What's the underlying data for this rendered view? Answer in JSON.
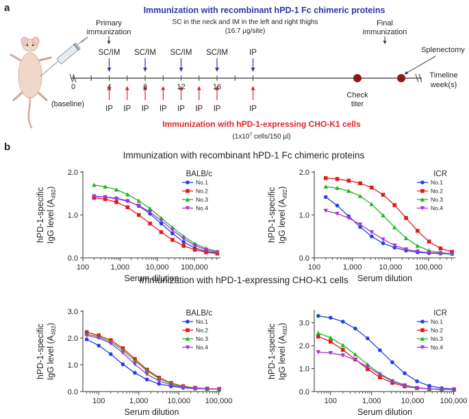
{
  "colors": {
    "blue": "#2b36a6",
    "red": "#e0242a",
    "dot": "#8b1a1a",
    "text": "#222222",
    "series": [
      "#1f3fe0",
      "#e01a1a",
      "#1fb31f",
      "#a933d6"
    ]
  },
  "panel_a": {
    "letter": "a",
    "title_blue": "Immunization with recombinant hPD-1 Fc chimeric proteins",
    "title_red": "Immunization with hPD-1-expressing CHO-K1 cells",
    "red_sub": "(1x10",
    "red_sub_exp": "7",
    "red_sub_rest": " cells/150 µl)",
    "primary_label_1": "Primary",
    "primary_label_2": "immunization",
    "sc_note_1": "SC in the neck and IM in the left and right thighs",
    "sc_note_2": "(16.7 µg/site)",
    "final_label_1": "Final",
    "final_label_2": "immunization",
    "splenectomy": "Splenectomy",
    "timeline_1": "Timeline",
    "timeline_2": "week(s)",
    "check_1": "Check",
    "check_2": "titer",
    "baseline": "(baseline)",
    "week_labels": [
      "0",
      "4",
      "8",
      "12",
      "16"
    ],
    "blue_marks": [
      "SC/IM",
      "SC/IM",
      "SC/IM",
      "SC/IM",
      "IP"
    ],
    "red_marks": [
      "IP",
      "IP",
      "IP",
      "IP",
      "IP",
      "IP",
      "IP",
      "IP"
    ]
  },
  "panel_b": {
    "letter": "b",
    "row1_title": "Immunization with recombinant hPD-1 Fc chimeric proteins",
    "row2_title": "Immunization with hPD-1-expressing CHO-K1 cells"
  },
  "chart_data": [
    {
      "type": "line",
      "title": "BALB/c",
      "row": "Immunization with recombinant hPD-1 Fc chimeric proteins",
      "xlabel": "Serum dilution",
      "ylabel_1": "hPD-1-specific",
      "ylabel_2": "IgG level (A",
      "ylabel_sub": "492",
      "ylabel_end": ")",
      "xscale": "log",
      "xlim": [
        100,
        500000
      ],
      "xticks": [
        100,
        1000,
        10000,
        100000
      ],
      "xtick_labels": [
        "100",
        "1,000",
        "10,000",
        "100,000"
      ],
      "ylim": [
        0,
        2.0
      ],
      "yticks": [
        0,
        1.0,
        2.0
      ],
      "ytick_labels": [
        "0.0",
        "1.0",
        "2.0"
      ],
      "x": [
        200,
        400,
        800,
        1600,
        3200,
        6400,
        12800,
        25600,
        51200,
        102400,
        204800,
        409600
      ],
      "series": [
        {
          "name": "No.1",
          "marker": "circle",
          "values": [
            1.43,
            1.42,
            1.39,
            1.33,
            1.21,
            1.03,
            0.8,
            0.57,
            0.37,
            0.23,
            0.15,
            0.11
          ]
        },
        {
          "name": "No.2",
          "marker": "square",
          "values": [
            1.4,
            1.37,
            1.3,
            1.18,
            1.0,
            0.8,
            0.6,
            0.42,
            0.28,
            0.19,
            0.13,
            0.1
          ]
        },
        {
          "name": "No.3",
          "marker": "triangle",
          "values": [
            1.7,
            1.66,
            1.59,
            1.48,
            1.33,
            1.15,
            0.93,
            0.71,
            0.5,
            0.33,
            0.22,
            0.15
          ]
        },
        {
          "name": "No.4",
          "marker": "triangle-down",
          "values": [
            1.44,
            1.42,
            1.38,
            1.32,
            1.22,
            1.07,
            0.87,
            0.65,
            0.45,
            0.29,
            0.19,
            0.13
          ]
        }
      ],
      "legend": "top-right"
    },
    {
      "type": "line",
      "title": "ICR",
      "row": "Immunization with recombinant hPD-1 Fc chimeric proteins",
      "xlabel": "Serum dilution",
      "ylabel_1": "hPD-1-specific",
      "ylabel_2": "IgG level (A",
      "ylabel_sub": "492",
      "ylabel_end": ")",
      "xscale": "log",
      "xlim": [
        100,
        500000
      ],
      "xticks": [
        100,
        1000,
        10000,
        100000
      ],
      "xtick_labels": [
        "100",
        "1,000",
        "10,000",
        "100,000"
      ],
      "ylim": [
        0,
        2.0
      ],
      "yticks": [
        0,
        1.0,
        2.0
      ],
      "ytick_labels": [
        "0.0",
        "1.0",
        "2.0"
      ],
      "x": [
        200,
        400,
        800,
        1600,
        3200,
        6400,
        12800,
        25600,
        51200,
        102400,
        204800,
        409600
      ],
      "series": [
        {
          "name": "No.1",
          "marker": "circle",
          "values": [
            1.42,
            1.22,
            0.97,
            0.72,
            0.5,
            0.34,
            0.24,
            0.17,
            0.13,
            0.11,
            0.1,
            0.09
          ]
        },
        {
          "name": "No.2",
          "marker": "square",
          "values": [
            1.86,
            1.84,
            1.8,
            1.74,
            1.64,
            1.47,
            1.23,
            0.93,
            0.63,
            0.38,
            0.22,
            0.14
          ]
        },
        {
          "name": "No.3",
          "marker": "triangle",
          "values": [
            1.66,
            1.63,
            1.56,
            1.44,
            1.25,
            0.99,
            0.71,
            0.46,
            0.28,
            0.17,
            0.12,
            0.1
          ]
        },
        {
          "name": "No.4",
          "marker": "triangle-down",
          "values": [
            1.1,
            1.03,
            0.93,
            0.78,
            0.6,
            0.43,
            0.29,
            0.2,
            0.15,
            0.12,
            0.11,
            0.1
          ]
        }
      ],
      "legend": "top-right"
    },
    {
      "type": "line",
      "title": "BALB/c",
      "row": "Immunization with hPD-1-expressing CHO-K1 cells",
      "xlabel": "Serum dilution",
      "ylabel_1": "hPD-1-specific",
      "ylabel_2": "IgG level (A",
      "ylabel_sub": "492",
      "ylabel_end": ")",
      "xscale": "log",
      "xlim": [
        40,
        110000
      ],
      "xticks": [
        100,
        1000,
        10000,
        100000
      ],
      "xtick_labels": [
        "100",
        "1,000",
        "10,000",
        "100,000"
      ],
      "ylim": [
        0,
        3.0
      ],
      "yticks": [
        0,
        1.0,
        2.0,
        3.0
      ],
      "ytick_labels": [
        "0.0",
        "1.0",
        "2.0",
        "3.0"
      ],
      "x": [
        50,
        100,
        200,
        400,
        800,
        1600,
        3200,
        6400,
        12800,
        25600,
        51200,
        102400
      ],
      "series": [
        {
          "name": "No.1",
          "marker": "circle",
          "values": [
            1.95,
            1.72,
            1.4,
            1.02,
            0.7,
            0.45,
            0.29,
            0.2,
            0.14,
            0.11,
            0.1,
            0.09
          ]
        },
        {
          "name": "No.2",
          "marker": "square",
          "values": [
            2.22,
            2.1,
            1.92,
            1.62,
            1.22,
            0.82,
            0.52,
            0.32,
            0.2,
            0.14,
            0.11,
            0.1
          ]
        },
        {
          "name": "No.3",
          "marker": "triangle",
          "values": [
            2.15,
            2.05,
            1.86,
            1.55,
            1.15,
            0.78,
            0.49,
            0.3,
            0.19,
            0.13,
            0.1,
            0.09
          ]
        },
        {
          "name": "No.4",
          "marker": "triangle-down",
          "values": [
            2.1,
            2.0,
            1.8,
            1.45,
            1.02,
            0.65,
            0.4,
            0.25,
            0.16,
            0.12,
            0.1,
            0.09
          ]
        }
      ],
      "legend": "top-right"
    },
    {
      "type": "line",
      "title": "ICR",
      "row": "Immunization with hPD-1-expressing CHO-K1 cells",
      "xlabel": "Serum dilution",
      "ylabel_1": "hPD-1-specific",
      "ylabel_2": "IgG level (A",
      "ylabel_sub": "492",
      "ylabel_end": ")",
      "xscale": "log",
      "xlim": [
        40,
        110000
      ],
      "xticks": [
        100,
        1000,
        10000,
        100000
      ],
      "xtick_labels": [
        "100",
        "1,000",
        "10,000",
        "100,000"
      ],
      "ylim": [
        0,
        3.5
      ],
      "yticks": [
        0,
        1.0,
        2.0,
        3.0
      ],
      "ytick_labels": [
        "0.0",
        "1.0",
        "2.0",
        "3.0"
      ],
      "x": [
        50,
        100,
        200,
        400,
        800,
        1600,
        3200,
        6400,
        12800,
        25600,
        51200,
        102400
      ],
      "series": [
        {
          "name": "No.1",
          "marker": "circle",
          "values": [
            3.3,
            3.22,
            3.05,
            2.75,
            2.32,
            1.8,
            1.28,
            0.8,
            0.45,
            0.25,
            0.15,
            0.11
          ]
        },
        {
          "name": "No.2",
          "marker": "square",
          "values": [
            2.4,
            2.18,
            1.82,
            1.4,
            0.98,
            0.62,
            0.38,
            0.23,
            0.15,
            0.11,
            0.1,
            0.09
          ]
        },
        {
          "name": "No.3",
          "marker": "triangle",
          "values": [
            2.55,
            2.35,
            2.02,
            1.62,
            1.18,
            0.78,
            0.48,
            0.28,
            0.17,
            0.12,
            0.1,
            0.09
          ]
        },
        {
          "name": "No.4",
          "marker": "triangle-down",
          "values": [
            1.72,
            1.68,
            1.58,
            1.38,
            1.08,
            0.74,
            0.45,
            0.27,
            0.16,
            0.12,
            0.1,
            0.09
          ]
        }
      ],
      "legend": "top-right"
    }
  ]
}
